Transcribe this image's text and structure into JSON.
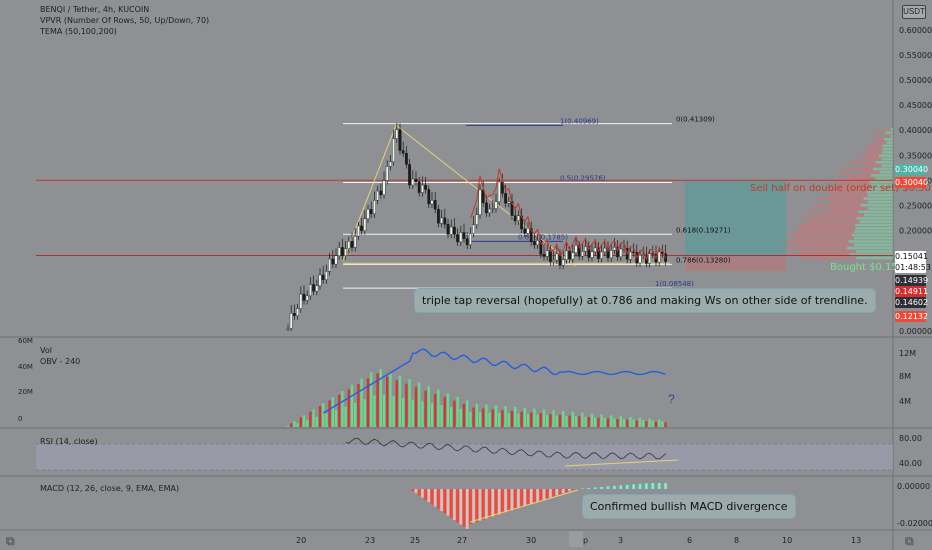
{
  "header": {
    "title": "BENQI / Tether, 4h, KUCOIN",
    "indicator1": "VPVR (Number Of Rows, 50, Up/Down, 70)",
    "indicator2": "TEMA (50,100,200)",
    "currency_button": "USDT"
  },
  "price_axis": {
    "ticks": [
      "0.60000",
      "0.55000",
      "0.50000",
      "0.45000",
      "0.40000",
      "0.35000",
      "0.30000",
      "0.25000",
      "0.20000",
      "0.00000"
    ]
  },
  "price_tags": [
    {
      "label": "0.30040",
      "bg": "#4fb3a8",
      "fg": "#ffffff"
    },
    {
      "label": "0.30040",
      "bg": "#e74c3c",
      "fg": "#ffffff"
    },
    {
      "label": "0.15041",
      "bg": "#ffffff",
      "fg": "#111111"
    },
    {
      "label": "01:48:53",
      "bg": "#ffffff",
      "fg": "#111111"
    },
    {
      "label": "0.14939",
      "bg": "#2e2f38",
      "fg": "#ffffff"
    },
    {
      "label": "0.14911",
      "bg": "#d32f2f",
      "fg": "#ffffff"
    },
    {
      "label": "0.14602",
      "bg": "#2e2f38",
      "fg": "#ffffff"
    },
    {
      "label": "0.12132",
      "bg": "#e74c3c",
      "fg": "#ffffff"
    }
  ],
  "fib_labels": [
    {
      "text": "1(0.40969)",
      "color": "#2a3a8c"
    },
    {
      "text": "0(0.41309)",
      "color": "#111111"
    },
    {
      "text": "0.5(0.29576)",
      "color": "#2a3a8c"
    },
    {
      "text": "0.618(0.19271)",
      "color": "#111111"
    },
    {
      "text": "0.618(0.1785)",
      "color": "#2a3a8c"
    },
    {
      "text": "0.786(0.13280)",
      "color": "#111111"
    },
    {
      "text": "1(0.08548)",
      "color": "#2a3a8c"
    }
  ],
  "annotations": {
    "sell": "Sell half on double (order set) $0.30",
    "bought": "Bought $0.15",
    "callout_main": "triple tap reversal (hopefully) at 0.786 and making Ws on other side of trendline.",
    "callout_macd": "Confirmed bullish MACD divergence",
    "question": "?"
  },
  "volume_pane": {
    "label1": "Vol",
    "label2": "OBV - 240",
    "left_ticks": [
      "60M",
      "40M",
      "20M",
      "0"
    ],
    "right_ticks": [
      "12M",
      "8M",
      "4M"
    ]
  },
  "rsi_pane": {
    "label": "RSI (14, close)",
    "ticks": [
      "80.00",
      "40.00"
    ]
  },
  "macd_pane": {
    "label": "MACD (12, 26, close, 9, EMA, EMA)",
    "ticks": [
      "0.00000",
      "-0.02000"
    ]
  },
  "time_axis": {
    "ticks": [
      "20",
      "23",
      "25",
      "27",
      "30",
      "Sep",
      "3",
      "6",
      "8",
      "10",
      "13"
    ]
  },
  "colors": {
    "bull": "#6fdc8c",
    "bear": "#c0392b",
    "obv": "#1f5ae6",
    "fib_white": "#f2f2f2",
    "trendline": "#e6d27a"
  },
  "chart_data": {
    "type": "candlestick",
    "title": "BENQI / Tether, 4h, KUCOIN",
    "ylim": [
      0,
      0.65
    ],
    "fib_levels": [
      0.41309,
      0.40969,
      0.29576,
      0.19271,
      0.1785,
      0.1328,
      0.08548
    ],
    "horizontal_levels": [
      {
        "label": "Sell half on double (order set) $0.30",
        "value": 0.3004
      },
      {
        "label": "Bought $0.15",
        "value": 0.1504
      }
    ],
    "last_price": 0.15041,
    "volume_ylim_M": [
      0,
      60
    ],
    "rsi_levels": [
      80,
      40
    ],
    "macd_ticks": [
      0,
      -0.02
    ]
  }
}
